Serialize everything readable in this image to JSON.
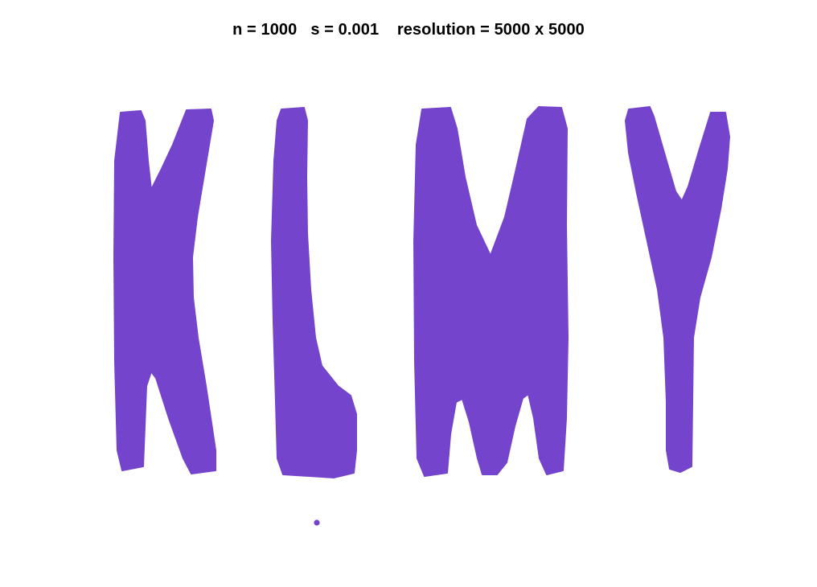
{
  "title": "n = 1000   s = 0.001    resolution = 5000 x 5000",
  "fill_color": "#7444cc",
  "background_color": "#ffffff",
  "glyphs": [
    "K",
    "L",
    "M",
    "Y"
  ]
}
